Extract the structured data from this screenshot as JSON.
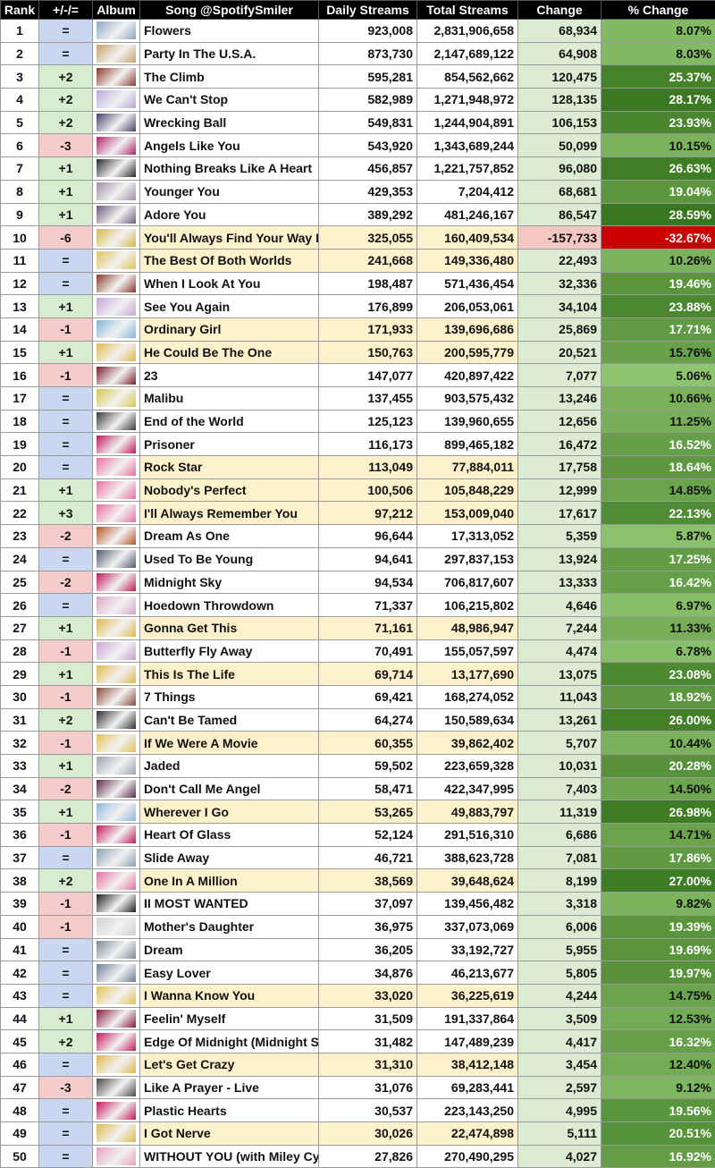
{
  "columns": [
    "Rank",
    "+/-/=",
    "Album",
    "Song @SpotifySmiler",
    "Daily Streams",
    "Total Streams",
    "Change",
    "% Change"
  ],
  "colors": {
    "header_bg": "#000000",
    "same_bg": "#c9d8f0",
    "up_bg": "#d8ecd0",
    "down_bg": "#f4cccc",
    "hannah_montana_bg": "#fdf1cc",
    "change_pos_bg": "#dbecd3",
    "change_neg_bg": "#f4c7c3",
    "neg_pct_bg": "#cc0000"
  },
  "rows": [
    {
      "rank": "1",
      "move": "=",
      "song": "Flowers",
      "daily": "923,008",
      "total": "2,831,906,658",
      "change": "68,934",
      "pct": "8.07%",
      "pct_value": 8.07,
      "art": "#8ea6c4",
      "hm": false
    },
    {
      "rank": "2",
      "move": "=",
      "song": "Party In The U.S.A.",
      "daily": "873,730",
      "total": "2,147,689,122",
      "change": "64,908",
      "pct": "8.03%",
      "pct_value": 8.03,
      "art": "#c9a06a",
      "hm": false
    },
    {
      "rank": "3",
      "move": "+2",
      "song": "The Climb",
      "daily": "595,281",
      "total": "854,562,662",
      "change": "120,475",
      "pct": "25.37%",
      "pct_value": 25.37,
      "art": "#8a3b2a",
      "hm": false
    },
    {
      "rank": "4",
      "move": "+2",
      "song": "We Can't Stop",
      "daily": "582,989",
      "total": "1,271,948,972",
      "change": "128,135",
      "pct": "28.17%",
      "pct_value": 28.17,
      "art": "#b7a7d9",
      "hm": false
    },
    {
      "rank": "5",
      "move": "+2",
      "song": "Wrecking Ball",
      "daily": "549,831",
      "total": "1,244,904,891",
      "change": "106,153",
      "pct": "23.93%",
      "pct_value": 23.93,
      "art": "#4a3f6e",
      "hm": false
    },
    {
      "rank": "6",
      "move": "-3",
      "song": "Angels Like You",
      "daily": "543,920",
      "total": "1,343,689,244",
      "change": "50,099",
      "pct": "10.15%",
      "pct_value": 10.15,
      "art": "#b0236a",
      "hm": false
    },
    {
      "rank": "7",
      "move": "+1",
      "song": "Nothing Breaks Like A Heart",
      "daily": "456,857",
      "total": "1,221,757,852",
      "change": "96,080",
      "pct": "26.63%",
      "pct_value": 26.63,
      "art": "#2b2b2b",
      "hm": false
    },
    {
      "rank": "8",
      "move": "+1",
      "song": "Younger You",
      "daily": "429,353",
      "total": "7,204,412",
      "change": "68,681",
      "pct": "19.04%",
      "pct_value": 19.04,
      "art": "#9e8fa8",
      "hm": false
    },
    {
      "rank": "9",
      "move": "+1",
      "song": "Adore You",
      "daily": "389,292",
      "total": "481,246,167",
      "change": "86,547",
      "pct": "28.59%",
      "pct_value": 28.59,
      "art": "#6f5a7d",
      "hm": false
    },
    {
      "rank": "10",
      "move": "-6",
      "song": "You'll Always Find Your Way Back",
      "daily": "325,055",
      "total": "160,409,534",
      "change": "-157,733",
      "pct": "-32.67%",
      "pct_value": -32.67,
      "art": "#d8b64a",
      "hm": true
    },
    {
      "rank": "11",
      "move": "=",
      "song": "The Best Of Both Worlds",
      "daily": "241,668",
      "total": "149,336,480",
      "change": "22,493",
      "pct": "10.26%",
      "pct_value": 10.26,
      "art": "#e3c25a",
      "hm": true
    },
    {
      "rank": "12",
      "move": "=",
      "song": "When I Look At You",
      "daily": "198,487",
      "total": "571,436,454",
      "change": "32,336",
      "pct": "19.46%",
      "pct_value": 19.46,
      "art": "#8a3b2a",
      "hm": false
    },
    {
      "rank": "13",
      "move": "+1",
      "song": "See You Again",
      "daily": "176,899",
      "total": "206,053,061",
      "change": "34,104",
      "pct": "23.88%",
      "pct_value": 23.88,
      "art": "#c7a3d6",
      "hm": false
    },
    {
      "rank": "14",
      "move": "-1",
      "song": "Ordinary Girl",
      "daily": "171,933",
      "total": "139,696,686",
      "change": "25,869",
      "pct": "17.71%",
      "pct_value": 17.71,
      "art": "#7fb5d9",
      "hm": true
    },
    {
      "rank": "15",
      "move": "+1",
      "song": "He Could Be The One",
      "daily": "150,763",
      "total": "200,595,779",
      "change": "20,521",
      "pct": "15.76%",
      "pct_value": 15.76,
      "art": "#e0b94c",
      "hm": true
    },
    {
      "rank": "16",
      "move": "-1",
      "song": "23",
      "daily": "147,077",
      "total": "420,897,422",
      "change": "7,077",
      "pct": "5.06%",
      "pct_value": 5.06,
      "art": "#7a1f2a",
      "hm": false
    },
    {
      "rank": "17",
      "move": "=",
      "song": "Malibu",
      "daily": "137,455",
      "total": "903,575,432",
      "change": "13,246",
      "pct": "10.66%",
      "pct_value": 10.66,
      "art": "#d6c64a",
      "hm": false
    },
    {
      "rank": "18",
      "move": "=",
      "song": "End of the World",
      "daily": "125,123",
      "total": "139,960,655",
      "change": "12,656",
      "pct": "11.25%",
      "pct_value": 11.25,
      "art": "#3a3a3a",
      "hm": false
    },
    {
      "rank": "19",
      "move": "=",
      "song": "Prisoner",
      "daily": "116,173",
      "total": "899,465,182",
      "change": "16,472",
      "pct": "16.52%",
      "pct_value": 16.52,
      "art": "#c2185b",
      "hm": false
    },
    {
      "rank": "20",
      "move": "=",
      "song": "Rock Star",
      "daily": "113,049",
      "total": "77,884,011",
      "change": "17,758",
      "pct": "18.64%",
      "pct_value": 18.64,
      "art": "#e86fa0",
      "hm": true
    },
    {
      "rank": "21",
      "move": "+1",
      "song": "Nobody's Perfect",
      "daily": "100,506",
      "total": "105,848,229",
      "change": "12,999",
      "pct": "14.85%",
      "pct_value": 14.85,
      "art": "#e86fa0",
      "hm": true
    },
    {
      "rank": "22",
      "move": "+3",
      "song": "I'll Always Remember You",
      "daily": "97,212",
      "total": "153,009,040",
      "change": "17,617",
      "pct": "22.13%",
      "pct_value": 22.13,
      "art": "#e86fa0",
      "hm": true
    },
    {
      "rank": "23",
      "move": "-2",
      "song": "Dream As One",
      "daily": "96,644",
      "total": "17,313,052",
      "change": "5,359",
      "pct": "5.87%",
      "pct_value": 5.87,
      "art": "#b5562a",
      "hm": false
    },
    {
      "rank": "24",
      "move": "=",
      "song": "Used To Be Young",
      "daily": "94,641",
      "total": "297,837,153",
      "change": "13,924",
      "pct": "17.25%",
      "pct_value": 17.25,
      "art": "#4d5a6e",
      "hm": false
    },
    {
      "rank": "25",
      "move": "-2",
      "song": "Midnight Sky",
      "daily": "94,534",
      "total": "706,817,607",
      "change": "13,333",
      "pct": "16.42%",
      "pct_value": 16.42,
      "art": "#c2185b",
      "hm": false
    },
    {
      "rank": "26",
      "move": "=",
      "song": "Hoedown Throwdown",
      "daily": "71,337",
      "total": "106,215,802",
      "change": "4,646",
      "pct": "6.97%",
      "pct_value": 6.97,
      "art": "#d7a6c9",
      "hm": false
    },
    {
      "rank": "27",
      "move": "+1",
      "song": "Gonna Get This",
      "daily": "71,161",
      "total": "48,986,947",
      "change": "7,244",
      "pct": "11.33%",
      "pct_value": 11.33,
      "art": "#e0b94c",
      "hm": true
    },
    {
      "rank": "28",
      "move": "-1",
      "song": "Butterfly Fly Away",
      "daily": "70,491",
      "total": "155,057,597",
      "change": "4,474",
      "pct": "6.78%",
      "pct_value": 6.78,
      "art": "#c7a3d6",
      "hm": false
    },
    {
      "rank": "29",
      "move": "+1",
      "song": "This Is The Life",
      "daily": "69,714",
      "total": "13,177,690",
      "change": "13,075",
      "pct": "23.08%",
      "pct_value": 23.08,
      "art": "#e0b94c",
      "hm": true
    },
    {
      "rank": "30",
      "move": "-1",
      "song": "7 Things",
      "daily": "69,421",
      "total": "168,274,052",
      "change": "11,043",
      "pct": "18.92%",
      "pct_value": 18.92,
      "art": "#8a4a3a",
      "hm": false
    },
    {
      "rank": "31",
      "move": "+2",
      "song": "Can't Be Tamed",
      "daily": "64,274",
      "total": "150,589,634",
      "change": "13,261",
      "pct": "26.00%",
      "pct_value": 26.0,
      "art": "#2e2e2e",
      "hm": false
    },
    {
      "rank": "32",
      "move": "-1",
      "song": "If We Were A Movie",
      "daily": "60,355",
      "total": "39,862,402",
      "change": "5,707",
      "pct": "10.44%",
      "pct_value": 10.44,
      "art": "#e3c25a",
      "hm": true
    },
    {
      "rank": "33",
      "move": "+1",
      "song": "Jaded",
      "daily": "59,502",
      "total": "223,659,328",
      "change": "10,031",
      "pct": "20.28%",
      "pct_value": 20.28,
      "art": "#9aa4b0",
      "hm": false
    },
    {
      "rank": "34",
      "move": "-2",
      "song": "Don't Call Me Angel",
      "daily": "58,471",
      "total": "422,347,995",
      "change": "7,403",
      "pct": "14.50%",
      "pct_value": 14.5,
      "art": "#5a2a4a",
      "hm": false
    },
    {
      "rank": "35",
      "move": "+1",
      "song": "Wherever I Go",
      "daily": "53,265",
      "total": "49,883,797",
      "change": "11,319",
      "pct": "26.98%",
      "pct_value": 26.98,
      "art": "#8fb7d9",
      "hm": true
    },
    {
      "rank": "36",
      "move": "-1",
      "song": "Heart Of Glass",
      "daily": "52,124",
      "total": "291,516,310",
      "change": "6,686",
      "pct": "14.71%",
      "pct_value": 14.71,
      "art": "#c2185b",
      "hm": false
    },
    {
      "rank": "37",
      "move": "=",
      "song": "Slide Away",
      "daily": "46,721",
      "total": "388,623,728",
      "change": "7,081",
      "pct": "17.86%",
      "pct_value": 17.86,
      "art": "#8aa1b5",
      "hm": false
    },
    {
      "rank": "38",
      "move": "+2",
      "song": "One In A Million",
      "daily": "38,569",
      "total": "39,648,624",
      "change": "8,199",
      "pct": "27.00%",
      "pct_value": 27.0,
      "art": "#e86fa0",
      "hm": true
    },
    {
      "rank": "39",
      "move": "-1",
      "song": "II MOST WANTED",
      "daily": "37,097",
      "total": "139,456,482",
      "change": "3,318",
      "pct": "9.82%",
      "pct_value": 9.82,
      "art": "#1f1f1f",
      "hm": false
    },
    {
      "rank": "40",
      "move": "-1",
      "song": "Mother's Daughter",
      "daily": "36,975",
      "total": "337,073,069",
      "change": "6,006",
      "pct": "19.39%",
      "pct_value": 19.39,
      "art": "#d0d0d0",
      "hm": false
    },
    {
      "rank": "41",
      "move": "=",
      "song": "Dream",
      "daily": "36,205",
      "total": "33,192,727",
      "change": "5,955",
      "pct": "19.69%",
      "pct_value": 19.69,
      "art": "#7b8a9a",
      "hm": false
    },
    {
      "rank": "42",
      "move": "=",
      "song": "Easy Lover",
      "daily": "34,876",
      "total": "46,213,677",
      "change": "5,805",
      "pct": "19.97%",
      "pct_value": 19.97,
      "art": "#6a7d92",
      "hm": false
    },
    {
      "rank": "43",
      "move": "=",
      "song": "I Wanna Know You",
      "daily": "33,020",
      "total": "36,225,619",
      "change": "4,244",
      "pct": "14.75%",
      "pct_value": 14.75,
      "art": "#e3c25a",
      "hm": true
    },
    {
      "rank": "44",
      "move": "+1",
      "song": "Feelin' Myself",
      "daily": "31,509",
      "total": "191,337,864",
      "change": "3,509",
      "pct": "12.53%",
      "pct_value": 12.53,
      "art": "#8a1a3a",
      "hm": false
    },
    {
      "rank": "45",
      "move": "+2",
      "song": "Edge Of Midnight (Midnight Sky Remix)",
      "daily": "31,482",
      "total": "147,489,239",
      "change": "4,417",
      "pct": "16.32%",
      "pct_value": 16.32,
      "art": "#c2185b",
      "hm": false
    },
    {
      "rank": "46",
      "move": "=",
      "song": "Let's Get Crazy",
      "daily": "31,310",
      "total": "38,412,148",
      "change": "3,454",
      "pct": "12.40%",
      "pct_value": 12.4,
      "art": "#e0b94c",
      "hm": true
    },
    {
      "rank": "47",
      "move": "-3",
      "song": "Like A Prayer - Live",
      "daily": "31,076",
      "total": "69,283,441",
      "change": "2,597",
      "pct": "9.12%",
      "pct_value": 9.12,
      "art": "#4a4a4a",
      "hm": false
    },
    {
      "rank": "48",
      "move": "=",
      "song": "Plastic Hearts",
      "daily": "30,537",
      "total": "223,143,250",
      "change": "4,995",
      "pct": "19.56%",
      "pct_value": 19.56,
      "art": "#c2185b",
      "hm": false
    },
    {
      "rank": "49",
      "move": "=",
      "song": "I Got Nerve",
      "daily": "30,026",
      "total": "22,474,898",
      "change": "5,111",
      "pct": "20.51%",
      "pct_value": 20.51,
      "art": "#e0b94c",
      "hm": true
    },
    {
      "rank": "50",
      "move": "=",
      "song": "WITHOUT YOU (with Miley Cyrus)",
      "daily": "27,826",
      "total": "270,490,295",
      "change": "4,027",
      "pct": "16.92%",
      "pct_value": 16.92,
      "art": "#e8a0c0",
      "hm": false
    }
  ]
}
